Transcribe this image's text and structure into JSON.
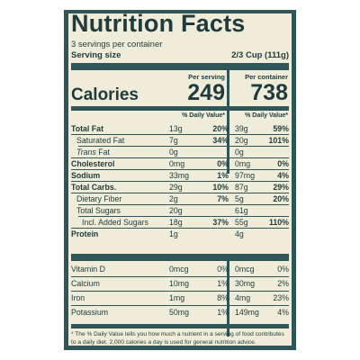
{
  "title": "Nutrition Facts",
  "servings_per_container": "3 servings per container",
  "serving_size": {
    "label": "Serving size",
    "value": "2/3 Cup (111g)"
  },
  "calories": {
    "label": "Calories",
    "per_serving_header": "Per serving",
    "per_container_header": "Per container",
    "per_serving": "249",
    "per_container": "738"
  },
  "dv_header": "% Daily Value*",
  "rows": [
    {
      "name": "Total Fat",
      "bold": true,
      "indent": 0,
      "amt1": "13g",
      "pct1": "20%",
      "pct1_bold": true,
      "amt2": "39g",
      "pct2": "59%",
      "pct2_bold": true
    },
    {
      "name": "Saturated Fat",
      "bold": false,
      "indent": 1,
      "amt1": "7g",
      "pct1": "34%",
      "pct1_bold": true,
      "amt2": "20g",
      "pct2": "101%",
      "pct2_bold": true
    },
    {
      "name": "Trans Fat",
      "bold": false,
      "italic_prefix": "Trans",
      "indent": 1,
      "amt1": "0g",
      "pct1": "",
      "amt2": "0g",
      "pct2": ""
    },
    {
      "name": "Cholesterol",
      "bold": true,
      "indent": 0,
      "amt1": "0mg",
      "pct1": "0%",
      "pct1_bold": true,
      "amt2": "0mg",
      "pct2": "0%",
      "pct2_bold": true
    },
    {
      "name": "Sodium",
      "bold": true,
      "indent": 0,
      "amt1": "33mg",
      "pct1": "1%",
      "pct1_bold": true,
      "amt2": "97mg",
      "pct2": "4%",
      "pct2_bold": true
    },
    {
      "name": "Total Carbs.",
      "bold": true,
      "indent": 0,
      "amt1": "29g",
      "pct1": "10%",
      "pct1_bold": true,
      "amt2": "87g",
      "pct2": "29%",
      "pct2_bold": true
    },
    {
      "name": "Dietary Fiber",
      "bold": false,
      "indent": 1,
      "amt1": "2g",
      "pct1": "7%",
      "pct1_bold": true,
      "amt2": "5g",
      "pct2": "20%",
      "pct2_bold": true
    },
    {
      "name": "Total Sugars",
      "bold": false,
      "indent": 1,
      "amt1": "20g",
      "pct1": "",
      "amt2": "61g",
      "pct2": ""
    },
    {
      "name": "Incl. Added Sugars",
      "bold": false,
      "indent": 2,
      "amt1": "18g",
      "pct1": "37%",
      "pct1_bold": true,
      "amt2": "55g",
      "pct2": "110%",
      "pct2_bold": true
    },
    {
      "name": "Protein",
      "bold": true,
      "indent": 0,
      "amt1": "1g",
      "pct1": "",
      "amt2": "4g",
      "pct2": ""
    }
  ],
  "vitamins": [
    {
      "name": "Vitamin D",
      "amt1": "0mcg",
      "pct1": "0%",
      "amt2": "0mcg",
      "pct2": "0%"
    },
    {
      "name": "Calcium",
      "amt1": "10mg",
      "pct1": "1%",
      "amt2": "30mg",
      "pct2": "2%"
    },
    {
      "name": "Iron",
      "amt1": "1mg",
      "pct1": "8%",
      "amt2": "4mg",
      "pct2": "23%"
    },
    {
      "name": "Potassium",
      "amt1": "50mg",
      "pct1": "1%",
      "amt2": "149mg",
      "pct2": "4%"
    }
  ],
  "footnote": "* The % Daily Value tells you how much a nutrient in a serving of food contributes to a daily diet. 2,000 calories a day is used for general nutrition advice.",
  "colors": {
    "panel": "#2f5556",
    "background": "#efecd9"
  }
}
